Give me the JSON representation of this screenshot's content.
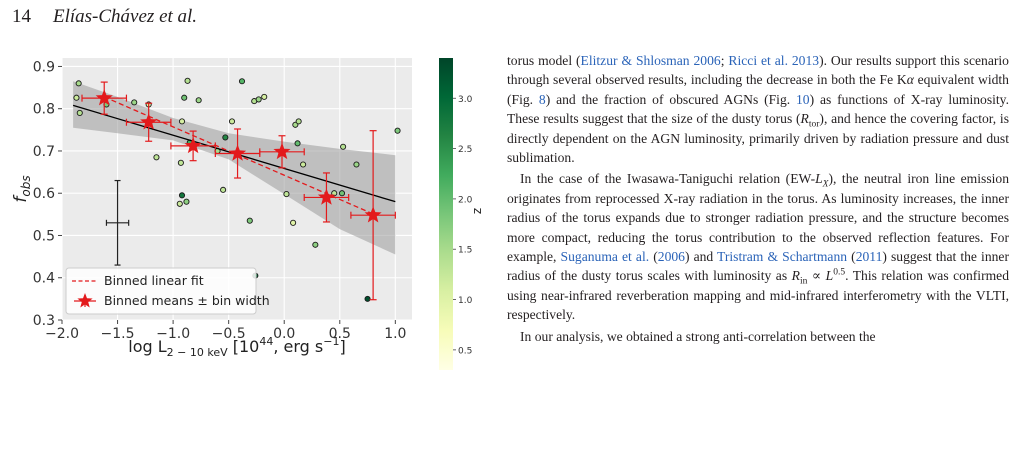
{
  "header": {
    "page_number": "14",
    "authors": "Elías-Chávez et al."
  },
  "chart_data": {
    "type": "scatter",
    "xlabel": {
      "base": "log L",
      "sub": "2 − 10 keV",
      "bracket_open": " [10",
      "sup": "44",
      "rest": ", erg s",
      "sup2": "−1",
      "bracket_close": "]"
    },
    "ylabel": {
      "base": "f",
      "sub": "obs"
    },
    "xlim": [
      -2.0,
      1.15
    ],
    "ylim": [
      0.3,
      0.92
    ],
    "xticks": [
      -2.0,
      -1.5,
      -1.0,
      -0.5,
      0.0,
      0.5,
      1.0
    ],
    "xtick_labels": [
      "−2.0",
      "−1.5",
      "−1.0",
      "−0.5",
      "0.0",
      "0.5",
      "1.0"
    ],
    "yticks": [
      0.3,
      0.4,
      0.5,
      0.6,
      0.7,
      0.8,
      0.9
    ],
    "ytick_labels": [
      "0.3",
      "0.4",
      "0.5",
      "0.6",
      "0.7",
      "0.8",
      "0.9"
    ],
    "grid": true,
    "legend_position": "bottom-left",
    "legend": [
      {
        "label": "Binned linear fit",
        "style": "red-dashed-line"
      },
      {
        "label": "Binned means ± bin width",
        "style": "red-star"
      }
    ],
    "colorbar": {
      "label": "z",
      "range": [
        0.3,
        3.4
      ],
      "ticks": [
        0.5,
        1.0,
        1.5,
        2.0,
        2.5,
        3.0
      ],
      "tick_labels": [
        "0.5",
        "1.0",
        "1.5",
        "2.0",
        "2.5",
        "3.0"
      ],
      "colors": [
        "#ffffe5",
        "#f7fcb9",
        "#d9f0a3",
        "#addd8e",
        "#78c679",
        "#41ab5d",
        "#238443",
        "#006837",
        "#004529"
      ]
    },
    "points": [
      {
        "x": -1.85,
        "y": 0.86,
        "z": 1.5
      },
      {
        "x": -1.87,
        "y": 0.826,
        "z": 1.2
      },
      {
        "x": -1.84,
        "y": 0.79,
        "z": 1.4
      },
      {
        "x": -1.6,
        "y": 0.81,
        "z": 1.8
      },
      {
        "x": -1.35,
        "y": 0.815,
        "z": 1.6
      },
      {
        "x": -1.22,
        "y": 0.81,
        "z": 1.0
      },
      {
        "x": -1.15,
        "y": 0.685,
        "z": 1.3
      },
      {
        "x": -0.92,
        "y": 0.77,
        "z": 1.1
      },
      {
        "x": -0.87,
        "y": 0.866,
        "z": 1.4
      },
      {
        "x": -0.9,
        "y": 0.826,
        "z": 1.9
      },
      {
        "x": -0.77,
        "y": 0.82,
        "z": 1.6
      },
      {
        "x": -0.85,
        "y": 0.72,
        "z": 2.2
      },
      {
        "x": -0.93,
        "y": 0.672,
        "z": 1.3
      },
      {
        "x": -0.92,
        "y": 0.595,
        "z": 2.8
      },
      {
        "x": -0.88,
        "y": 0.58,
        "z": 1.7
      },
      {
        "x": -0.94,
        "y": 0.575,
        "z": 1.2
      },
      {
        "x": -0.6,
        "y": 0.7,
        "z": 1.5
      },
      {
        "x": -0.53,
        "y": 0.732,
        "z": 2.6
      },
      {
        "x": -0.55,
        "y": 0.608,
        "z": 1.3
      },
      {
        "x": -0.47,
        "y": 0.77,
        "z": 1.2
      },
      {
        "x": -0.38,
        "y": 0.865,
        "z": 2.1
      },
      {
        "x": -0.27,
        "y": 0.818,
        "z": 1.4
      },
      {
        "x": -0.23,
        "y": 0.822,
        "z": 1.6
      },
      {
        "x": -0.18,
        "y": 0.828,
        "z": 1.1
      },
      {
        "x": -0.31,
        "y": 0.535,
        "z": 1.8
      },
      {
        "x": -0.26,
        "y": 0.405,
        "z": 2.9
      },
      {
        "x": 0.02,
        "y": 0.598,
        "z": 1.3
      },
      {
        "x": 0.08,
        "y": 0.53,
        "z": 1.0
      },
      {
        "x": 0.1,
        "y": 0.762,
        "z": 1.5
      },
      {
        "x": 0.13,
        "y": 0.77,
        "z": 1.4
      },
      {
        "x": 0.12,
        "y": 0.718,
        "z": 2.0
      },
      {
        "x": 0.17,
        "y": 0.668,
        "z": 1.2
      },
      {
        "x": 0.28,
        "y": 0.478,
        "z": 1.7
      },
      {
        "x": 0.45,
        "y": 0.6,
        "z": 1.3
      },
      {
        "x": 0.52,
        "y": 0.6,
        "z": 1.9
      },
      {
        "x": 0.53,
        "y": 0.71,
        "z": 1.4
      },
      {
        "x": 0.65,
        "y": 0.668,
        "z": 1.6
      },
      {
        "x": 0.75,
        "y": 0.35,
        "z": 3.3
      },
      {
        "x": 1.02,
        "y": 0.748,
        "z": 1.8
      }
    ],
    "binned_means": [
      {
        "x": -1.62,
        "y": 0.825,
        "xerr": 0.2,
        "yerr": 0.038
      },
      {
        "x": -1.22,
        "y": 0.768,
        "xerr": 0.2,
        "yerr": 0.045
      },
      {
        "x": -0.82,
        "y": 0.712,
        "xerr": 0.2,
        "yerr": 0.035
      },
      {
        "x": -0.42,
        "y": 0.694,
        "xerr": 0.2,
        "yerr": 0.058
      },
      {
        "x": -0.02,
        "y": 0.698,
        "xerr": 0.2,
        "yerr": 0.038
      },
      {
        "x": 0.38,
        "y": 0.59,
        "xerr": 0.2,
        "yerr": 0.058
      },
      {
        "x": 0.8,
        "y": 0.548,
        "xerr": 0.2,
        "yerr": 0.2
      }
    ],
    "binned_linear_fit": {
      "x": [
        -1.62,
        0.8
      ],
      "y": [
        0.828,
        0.551
      ]
    },
    "overall_fit": {
      "x": [
        -1.9,
        1.0
      ],
      "y": [
        0.808,
        0.58
      ]
    },
    "confidence_band": {
      "x": [
        -1.9,
        -1.5,
        -1.0,
        -0.5,
        0.0,
        0.5,
        1.0
      ],
      "upper": [
        0.865,
        0.828,
        0.778,
        0.742,
        0.722,
        0.705,
        0.69
      ],
      "lower": [
        0.755,
        0.742,
        0.725,
        0.68,
        0.598,
        0.515,
        0.455
      ]
    },
    "typical_error": {
      "x": -1.5,
      "y": 0.53,
      "xerr": 0.1,
      "yerr": 0.1
    }
  },
  "text_column": {
    "paragraphs": [
      {
        "indent": false,
        "segments": [
          {
            "t": "torus model ("
          },
          {
            "t": "Elitzur & Shlosman 2006",
            "link": true
          },
          {
            "t": "; "
          },
          {
            "t": "Ricci et al. 2013",
            "link": true
          },
          {
            "t": "). Our results support this scenario through several observed results, including the decrease in both the Fe K"
          },
          {
            "t": "α",
            "i": true
          },
          {
            "t": " equivalent width (Fig. "
          },
          {
            "t": "8",
            "link": true
          },
          {
            "t": ") and the fraction of obscured AGNs (Fig. "
          },
          {
            "t": "10",
            "link": true
          },
          {
            "t": ") as functions of X-ray luminosity. These results suggest that the size of the dusty torus ("
          },
          {
            "t": "R",
            "i": true
          },
          {
            "t": "tor",
            "sub": true
          },
          {
            "t": "), and hence the covering factor, is directly dependent on the AGN luminosity, primarily driven by radiation pressure and dust sublimation."
          }
        ]
      },
      {
        "indent": true,
        "segments": [
          {
            "t": "In the case of the Iwasawa-Taniguchi relation (EW-"
          },
          {
            "t": "L",
            "i": true
          },
          {
            "t": "X",
            "sub": true,
            "i": true
          },
          {
            "t": "), the neutral iron line emission originates from reprocessed X-ray radiation in the torus. As luminosity increases, the inner radius of the torus expands due to stronger radiation pressure, and the structure becomes more compact, reducing the torus contribution to the observed reflection features. For example, "
          },
          {
            "t": "Suganuma et al.",
            "link": true
          },
          {
            "t": " ("
          },
          {
            "t": "2006",
            "link": true
          },
          {
            "t": ") and "
          },
          {
            "t": "Tristram & Schartmann",
            "link": true
          },
          {
            "t": " ("
          },
          {
            "t": "2011",
            "link": true
          },
          {
            "t": ") suggest that the inner radius of the dusty torus scales with luminosity as "
          },
          {
            "t": "R",
            "i": true
          },
          {
            "t": "in",
            "sub": true
          },
          {
            "t": " ∝ "
          },
          {
            "t": "L",
            "i": true
          },
          {
            "t": "0.5",
            "sup": true
          },
          {
            "t": ". This relation was confirmed using near-infrared reverberation mapping and mid-infrared interferometry with the VLTI, respectively."
          }
        ]
      },
      {
        "indent": true,
        "segments": [
          {
            "t": "In our analysis, we obtained a strong anti-correlation between the"
          }
        ]
      }
    ]
  }
}
